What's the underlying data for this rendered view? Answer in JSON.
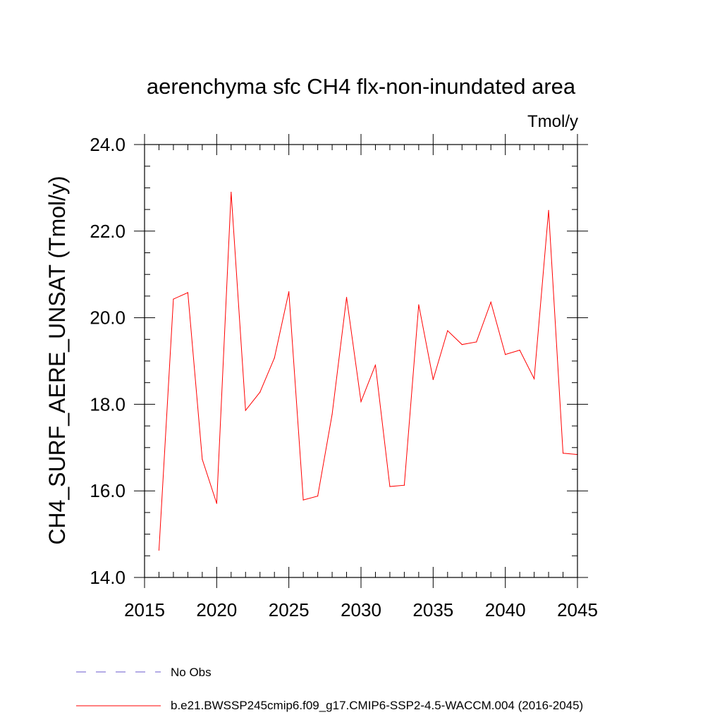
{
  "chart_data": {
    "type": "line",
    "title": "aerenchyma sfc CH4 flx-non-inundated area",
    "units_label": "Tmol/y",
    "xlabel": "",
    "ylabel": "CH4_SURF_AERE_UNSAT  (Tmol/y)",
    "xlim": [
      2015,
      2045
    ],
    "ylim": [
      14.0,
      24.0
    ],
    "x_major_ticks": [
      2015,
      2020,
      2025,
      2030,
      2035,
      2040,
      2045
    ],
    "x_tick_labels": [
      "2015",
      "2020",
      "2025",
      "2030",
      "2035",
      "2040",
      "2045"
    ],
    "y_major_ticks": [
      14.0,
      16.0,
      18.0,
      20.0,
      22.0,
      24.0
    ],
    "y_tick_labels": [
      "14.0",
      "16.0",
      "18.0",
      "20.0",
      "22.0",
      "24.0"
    ],
    "x_minor_step": 1,
    "y_minor_step": 0.5,
    "grid": false,
    "legend_position": "bottom-left",
    "series": [
      {
        "name": "No Obs",
        "color": "#6a5acd",
        "style": "dashed",
        "x": [],
        "values": []
      },
      {
        "name": "b.e21.BWSSP245cmip6.f09_g17.CMIP6-SSP2-4.5-WACCM.004 (2016-2045)",
        "color": "#ff0000",
        "style": "solid",
        "x": [
          2016,
          2017,
          2018,
          2019,
          2020,
          2021,
          2022,
          2023,
          2024,
          2025,
          2026,
          2027,
          2028,
          2029,
          2030,
          2031,
          2032,
          2033,
          2034,
          2035,
          2036,
          2037,
          2038,
          2039,
          2040,
          2041,
          2042,
          2043,
          2044,
          2045
        ],
        "values": [
          14.63,
          20.43,
          20.58,
          16.73,
          15.71,
          22.9,
          17.86,
          18.28,
          19.07,
          20.6,
          15.79,
          15.88,
          17.77,
          20.47,
          18.06,
          18.91,
          16.1,
          16.13,
          20.3,
          18.57,
          19.7,
          19.38,
          19.44,
          20.36,
          19.15,
          19.25,
          18.59,
          22.48,
          16.87,
          16.84
        ]
      }
    ]
  }
}
